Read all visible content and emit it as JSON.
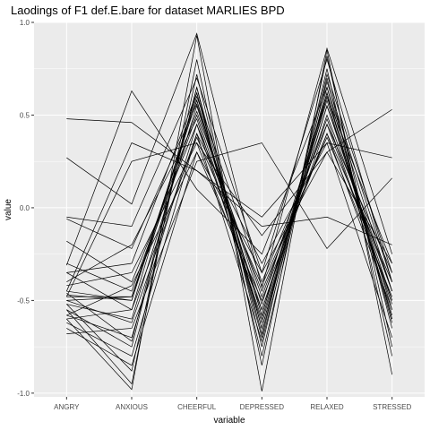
{
  "chart_data": {
    "type": "line",
    "title": "Laodings of F1 def.E.bare for dataset MARLIES BPD",
    "xlabel": "variable",
    "ylabel": "value",
    "categories": [
      "ANGRY",
      "ANXIOUS",
      "CHEERFUL",
      "DEPRESSED",
      "RELAXED",
      "STRESSED"
    ],
    "ylim": [
      -1.02,
      1.0
    ],
    "yticks": [
      -1.0,
      -0.5,
      0.0,
      0.5,
      1.0
    ],
    "ytick_labels": [
      "-1.0",
      "-0.5",
      "0.0",
      "0.5",
      "1.0"
    ],
    "grid": true,
    "panel_background": "#ebebeb",
    "line_color": "#000000",
    "series": [
      {
        "values": [
          0.48,
          0.46,
          0.2,
          -0.05,
          0.35,
          0.27
        ]
      },
      {
        "values": [
          0.27,
          0.02,
          0.94,
          -0.43,
          0.86,
          -0.25
        ]
      },
      {
        "values": [
          -0.05,
          -0.1,
          0.7,
          -0.35,
          0.8,
          -0.4
        ]
      },
      {
        "values": [
          -0.06,
          -0.22,
          0.56,
          -0.52,
          0.6,
          -0.3
        ]
      },
      {
        "values": [
          -0.18,
          -0.4,
          0.45,
          -0.6,
          0.55,
          -0.5
        ]
      },
      {
        "values": [
          -0.31,
          0.63,
          0.1,
          -0.25,
          0.65,
          -0.45
        ]
      },
      {
        "values": [
          -0.35,
          -0.55,
          0.62,
          -0.7,
          0.72,
          -0.35
        ]
      },
      {
        "values": [
          -0.45,
          -0.5,
          0.58,
          -0.65,
          0.6,
          -0.55
        ]
      },
      {
        "values": [
          -0.47,
          -0.5,
          0.6,
          -0.4,
          0.45,
          -0.5
        ]
      },
      {
        "values": [
          -0.48,
          0.25,
          0.35,
          -0.15,
          0.3,
          0.53
        ]
      },
      {
        "values": [
          -0.5,
          -0.48,
          0.5,
          -0.55,
          0.5,
          -0.45
        ]
      },
      {
        "values": [
          -0.52,
          -0.6,
          0.55,
          -0.58,
          0.62,
          -0.6
        ]
      },
      {
        "values": [
          -0.55,
          -0.75,
          0.65,
          -0.8,
          0.7,
          -0.65
        ]
      },
      {
        "values": [
          -0.58,
          -0.7,
          0.45,
          -0.45,
          0.4,
          -0.4
        ]
      },
      {
        "values": [
          -0.6,
          -0.98,
          0.93,
          -0.99,
          0.85,
          -0.9
        ]
      },
      {
        "values": [
          -0.62,
          -0.8,
          0.4,
          -0.3,
          0.35,
          -0.7
        ]
      },
      {
        "values": [
          -0.65,
          -0.85,
          0.3,
          -0.5,
          0.4,
          -0.55
        ]
      },
      {
        "values": [
          -0.68,
          -0.65,
          0.25,
          0.35,
          -0.22,
          0.16
        ]
      },
      {
        "values": [
          -0.4,
          -0.2,
          0.48,
          -0.62,
          0.55,
          -0.45
        ]
      },
      {
        "values": [
          -0.3,
          -0.45,
          0.52,
          -0.48,
          0.48,
          -0.52
        ]
      },
      {
        "values": [
          -0.55,
          -0.95,
          0.8,
          -0.85,
          0.82,
          -0.75
        ]
      },
      {
        "values": [
          -0.5,
          -0.62,
          0.4,
          -0.72,
          0.65,
          -0.6
        ]
      },
      {
        "values": [
          -0.45,
          0.35,
          0.2,
          -0.1,
          -0.05,
          -0.2
        ]
      },
      {
        "values": [
          -0.42,
          -0.35,
          0.35,
          -0.55,
          0.45,
          -0.35
        ]
      },
      {
        "values": [
          -0.6,
          -0.55,
          0.38,
          -0.42,
          0.38,
          -0.48
        ]
      },
      {
        "values": [
          -0.35,
          -0.3,
          0.62,
          -0.68,
          0.68,
          -0.4
        ]
      },
      {
        "values": [
          -0.48,
          -0.48,
          0.58,
          -0.58,
          0.58,
          -0.58
        ]
      },
      {
        "values": [
          -0.52,
          -0.88,
          0.72,
          -0.75,
          0.75,
          -0.8
        ]
      },
      {
        "values": [
          -0.58,
          -0.42,
          0.3,
          -0.35,
          0.3,
          -0.3
        ]
      },
      {
        "values": [
          -0.46,
          -0.72,
          0.65,
          -0.65,
          0.62,
          -0.62
        ]
      }
    ]
  }
}
